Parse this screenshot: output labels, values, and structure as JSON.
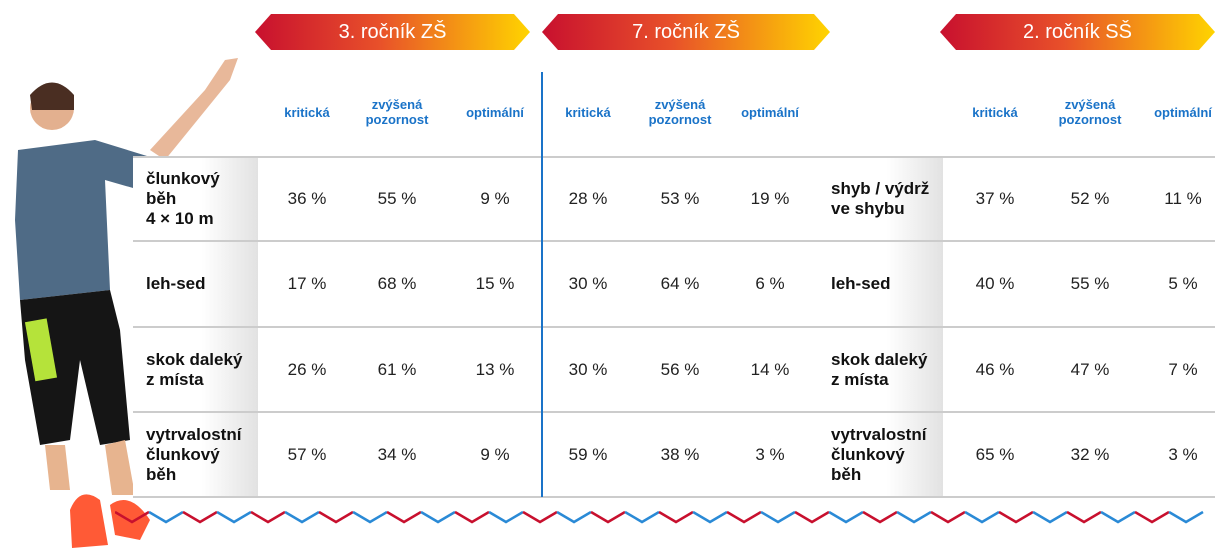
{
  "groups": [
    {
      "title": "3. ročník ZŠ",
      "columns": [
        [
          "kritická"
        ],
        [
          "zvýšená",
          "pozornost"
        ],
        [
          "optimální"
        ]
      ],
      "values": [
        [
          "36 %",
          "55 %",
          "9 %"
        ],
        [
          "17 %",
          "68 %",
          "15 %"
        ],
        [
          "26 %",
          "61 %",
          "13 %"
        ],
        [
          "57 %",
          "34 %",
          "9 %"
        ]
      ]
    },
    {
      "title": "7. ročník ZŠ",
      "columns": [
        [
          "kritická"
        ],
        [
          "zvýšená",
          "pozornost"
        ],
        [
          "optimální"
        ]
      ],
      "values": [
        [
          "28 %",
          "53 %",
          "19 %"
        ],
        [
          "30 %",
          "64 %",
          "6 %"
        ],
        [
          "30 %",
          "56 %",
          "14 %"
        ],
        [
          "59 %",
          "38 %",
          "3 %"
        ]
      ]
    },
    {
      "title": "2. ročník SŠ",
      "columns": [
        [
          "kritická"
        ],
        [
          "zvýšená",
          "pozornost"
        ],
        [
          "optimální"
        ]
      ],
      "values": [
        [
          "37 %",
          "52 %",
          "11 %"
        ],
        [
          "40 %",
          "55 %",
          "5 %"
        ],
        [
          "46 %",
          "47 %",
          "7 %"
        ],
        [
          "65 %",
          "32 %",
          "3 %"
        ]
      ]
    }
  ],
  "row_labels_left": [
    [
      "člunkový",
      "běh",
      "4 × 10 m"
    ],
    [
      "leh-sed"
    ],
    [
      "skok daleký",
      "z místa"
    ],
    [
      "vytrvalostní",
      "člunkový",
      "běh"
    ]
  ],
  "row_labels_right": [
    [
      "shyb / výdrž",
      "ve shybu"
    ],
    [
      "leh-sed"
    ],
    [
      "skok daleký",
      "z místa"
    ],
    [
      "vytrvalostní",
      "člunkový",
      "běh"
    ]
  ]
}
